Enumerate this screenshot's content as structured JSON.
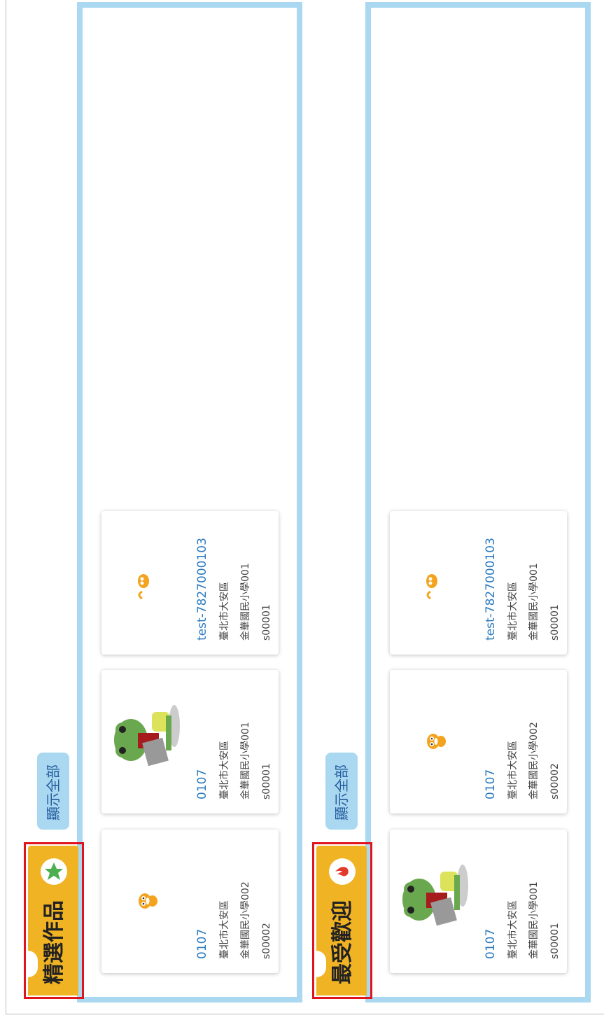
{
  "sections": [
    {
      "title": "精選作品",
      "show_all": "顯示全部",
      "cards": [
        {
          "title": "0107",
          "city": "臺北市大安區",
          "school": "金華國民小學002",
          "id": "s00002"
        },
        {
          "title": "0107",
          "city": "臺北市大安區",
          "school": "金華國民小學001",
          "id": "s00001"
        },
        {
          "title": "test-7827000103",
          "city": "臺北市大安區",
          "school": "金華國民小學001",
          "id": "s00001"
        }
      ]
    },
    {
      "title": "最受歡迎",
      "show_all": "顯示全部",
      "cards": [
        {
          "title": "0107",
          "city": "臺北市大安區",
          "school": "金華國民小學001",
          "id": "s00001"
        },
        {
          "title": "0107",
          "city": "臺北市大安區",
          "school": "金華國民小學002",
          "id": "s00002"
        },
        {
          "title": "test-7827000103",
          "city": "臺北市大安區",
          "school": "金華國民小學001",
          "id": "s00001"
        }
      ]
    }
  ]
}
